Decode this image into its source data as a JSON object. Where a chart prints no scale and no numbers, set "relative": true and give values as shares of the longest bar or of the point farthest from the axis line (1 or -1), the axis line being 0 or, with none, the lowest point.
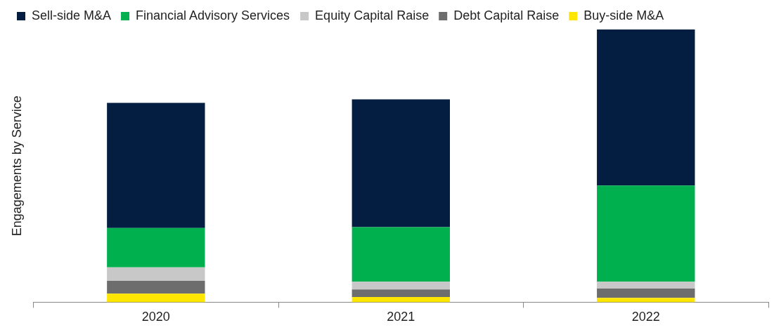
{
  "chart_data": {
    "type": "bar",
    "stacked": true,
    "relative": true,
    "ylabel": "Engagements by Service",
    "categories": [
      "2020",
      "2021",
      "2022"
    ],
    "legend": "top left",
    "grid": false,
    "series": [
      {
        "name": "Buy-side M&A",
        "color": "#ffe600",
        "values": [
          0.031,
          0.019,
          0.016
        ]
      },
      {
        "name": "Debt Capital Raise",
        "color": "#6d6d6d",
        "values": [
          0.047,
          0.028,
          0.034
        ]
      },
      {
        "name": "Equity Capital Raise",
        "color": "#c8c8c8",
        "values": [
          0.05,
          0.028,
          0.025
        ]
      },
      {
        "name": "Financial Advisory Services",
        "color": "#00b04f",
        "values": [
          0.144,
          0.2,
          0.353
        ]
      },
      {
        "name": "Sell-side M&A",
        "color": "#041e42",
        "values": [
          0.459,
          0.469,
          0.572
        ]
      }
    ]
  }
}
